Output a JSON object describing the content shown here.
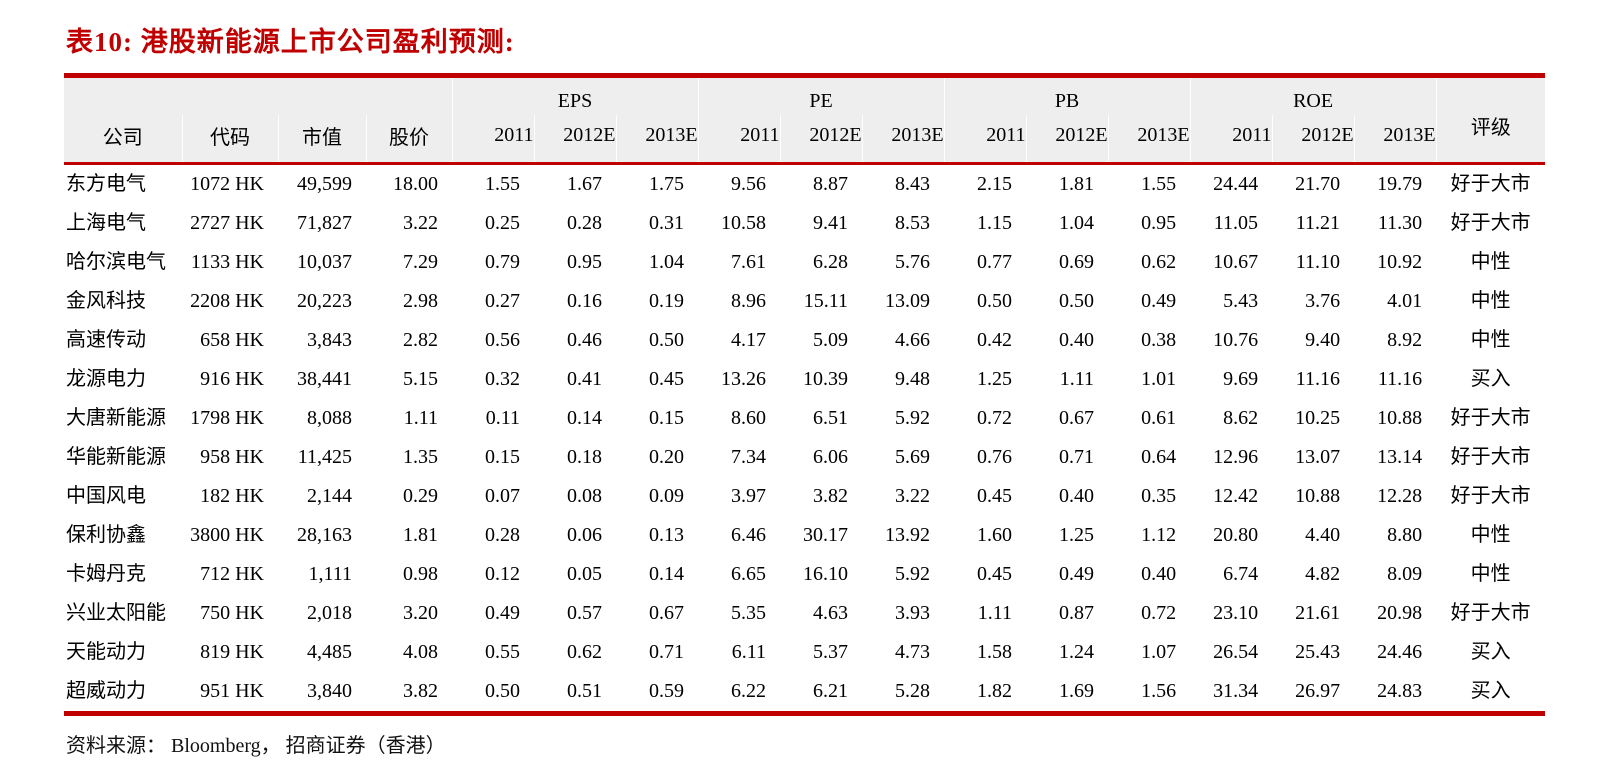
{
  "title": "表10:  港股新能源上市公司盈利预测:",
  "source_note": "资料来源：  Bloomberg，  招商证券（香港）",
  "colors": {
    "accent_red": "#c00000",
    "header_bg": "#eeeeee",
    "text": "#000000"
  },
  "table": {
    "base_headers": [
      "公司",
      "代码",
      "市值",
      "股价"
    ],
    "groups": [
      {
        "label": "EPS",
        "years": [
          "2011",
          "2012E",
          "2013E"
        ]
      },
      {
        "label": "PE",
        "years": [
          "2011",
          "2012E",
          "2013E"
        ]
      },
      {
        "label": "PB",
        "years": [
          "2011",
          "2012E",
          "2013E"
        ]
      },
      {
        "label": "ROE",
        "years": [
          "2011",
          "2012E",
          "2013E"
        ]
      }
    ],
    "rating_header": "评级",
    "rows": [
      {
        "company": "东方电气",
        "code": "1072 HK",
        "market_cap": "49,599",
        "price": "18.00",
        "eps": [
          "1.55",
          "1.67",
          "1.75"
        ],
        "pe": [
          "9.56",
          "8.87",
          "8.43"
        ],
        "pb": [
          "2.15",
          "1.81",
          "1.55"
        ],
        "roe": [
          "24.44",
          "21.70",
          "19.79"
        ],
        "rating": "好于大市"
      },
      {
        "company": "上海电气",
        "code": "2727 HK",
        "market_cap": "71,827",
        "price": "3.22",
        "eps": [
          "0.25",
          "0.28",
          "0.31"
        ],
        "pe": [
          "10.58",
          "9.41",
          "8.53"
        ],
        "pb": [
          "1.15",
          "1.04",
          "0.95"
        ],
        "roe": [
          "11.05",
          "11.21",
          "11.30"
        ],
        "rating": "好于大市"
      },
      {
        "company": "哈尔滨电气",
        "code": "1133 HK",
        "market_cap": "10,037",
        "price": "7.29",
        "eps": [
          "0.79",
          "0.95",
          "1.04"
        ],
        "pe": [
          "7.61",
          "6.28",
          "5.76"
        ],
        "pb": [
          "0.77",
          "0.69",
          "0.62"
        ],
        "roe": [
          "10.67",
          "11.10",
          "10.92"
        ],
        "rating": "中性"
      },
      {
        "company": "金风科技",
        "code": "2208 HK",
        "market_cap": "20,223",
        "price": "2.98",
        "eps": [
          "0.27",
          "0.16",
          "0.19"
        ],
        "pe": [
          "8.96",
          "15.11",
          "13.09"
        ],
        "pb": [
          "0.50",
          "0.50",
          "0.49"
        ],
        "roe": [
          "5.43",
          "3.76",
          "4.01"
        ],
        "rating": "中性"
      },
      {
        "company": "高速传动",
        "code": "658 HK",
        "market_cap": "3,843",
        "price": "2.82",
        "eps": [
          "0.56",
          "0.46",
          "0.50"
        ],
        "pe": [
          "4.17",
          "5.09",
          "4.66"
        ],
        "pb": [
          "0.42",
          "0.40",
          "0.38"
        ],
        "roe": [
          "10.76",
          "9.40",
          "8.92"
        ],
        "rating": "中性"
      },
      {
        "company": "龙源电力",
        "code": "916 HK",
        "market_cap": "38,441",
        "price": "5.15",
        "eps": [
          "0.32",
          "0.41",
          "0.45"
        ],
        "pe": [
          "13.26",
          "10.39",
          "9.48"
        ],
        "pb": [
          "1.25",
          "1.11",
          "1.01"
        ],
        "roe": [
          "9.69",
          "11.16",
          "11.16"
        ],
        "rating": "买入"
      },
      {
        "company": "大唐新能源",
        "code": "1798 HK",
        "market_cap": "8,088",
        "price": "1.11",
        "eps": [
          "0.11",
          "0.14",
          "0.15"
        ],
        "pe": [
          "8.60",
          "6.51",
          "5.92"
        ],
        "pb": [
          "0.72",
          "0.67",
          "0.61"
        ],
        "roe": [
          "8.62",
          "10.25",
          "10.88"
        ],
        "rating": "好于大市"
      },
      {
        "company": "华能新能源",
        "code": "958 HK",
        "market_cap": "11,425",
        "price": "1.35",
        "eps": [
          "0.15",
          "0.18",
          "0.20"
        ],
        "pe": [
          "7.34",
          "6.06",
          "5.69"
        ],
        "pb": [
          "0.76",
          "0.71",
          "0.64"
        ],
        "roe": [
          "12.96",
          "13.07",
          "13.14"
        ],
        "rating": "好于大市"
      },
      {
        "company": "中国风电",
        "code": "182 HK",
        "market_cap": "2,144",
        "price": "0.29",
        "eps": [
          "0.07",
          "0.08",
          "0.09"
        ],
        "pe": [
          "3.97",
          "3.82",
          "3.22"
        ],
        "pb": [
          "0.45",
          "0.40",
          "0.35"
        ],
        "roe": [
          "12.42",
          "10.88",
          "12.28"
        ],
        "rating": "好于大市"
      },
      {
        "company": "保利协鑫",
        "code": "3800 HK",
        "market_cap": "28,163",
        "price": "1.81",
        "eps": [
          "0.28",
          "0.06",
          "0.13"
        ],
        "pe": [
          "6.46",
          "30.17",
          "13.92"
        ],
        "pb": [
          "1.60",
          "1.25",
          "1.12"
        ],
        "roe": [
          "20.80",
          "4.40",
          "8.80"
        ],
        "rating": "中性"
      },
      {
        "company": "卡姆丹克",
        "code": "712 HK",
        "market_cap": "1,111",
        "price": "0.98",
        "eps": [
          "0.12",
          "0.05",
          "0.14"
        ],
        "pe": [
          "6.65",
          "16.10",
          "5.92"
        ],
        "pb": [
          "0.45",
          "0.49",
          "0.40"
        ],
        "roe": [
          "6.74",
          "4.82",
          "8.09"
        ],
        "rating": "中性"
      },
      {
        "company": "兴业太阳能",
        "code": "750 HK",
        "market_cap": "2,018",
        "price": "3.20",
        "eps": [
          "0.49",
          "0.57",
          "0.67"
        ],
        "pe": [
          "5.35",
          "4.63",
          "3.93"
        ],
        "pb": [
          "1.11",
          "0.87",
          "0.72"
        ],
        "roe": [
          "23.10",
          "21.61",
          "20.98"
        ],
        "rating": "好于大市"
      },
      {
        "company": "天能动力",
        "code": "819 HK",
        "market_cap": "4,485",
        "price": "4.08",
        "eps": [
          "0.55",
          "0.62",
          "0.71"
        ],
        "pe": [
          "6.11",
          "5.37",
          "4.73"
        ],
        "pb": [
          "1.58",
          "1.24",
          "1.07"
        ],
        "roe": [
          "26.54",
          "25.43",
          "24.46"
        ],
        "rating": "买入"
      },
      {
        "company": "超威动力",
        "code": "951 HK",
        "market_cap": "3,840",
        "price": "3.82",
        "eps": [
          "0.50",
          "0.51",
          "0.59"
        ],
        "pe": [
          "6.22",
          "6.21",
          "5.28"
        ],
        "pb": [
          "1.82",
          "1.69",
          "1.56"
        ],
        "roe": [
          "31.34",
          "26.97",
          "24.83"
        ],
        "rating": "买入"
      }
    ]
  }
}
